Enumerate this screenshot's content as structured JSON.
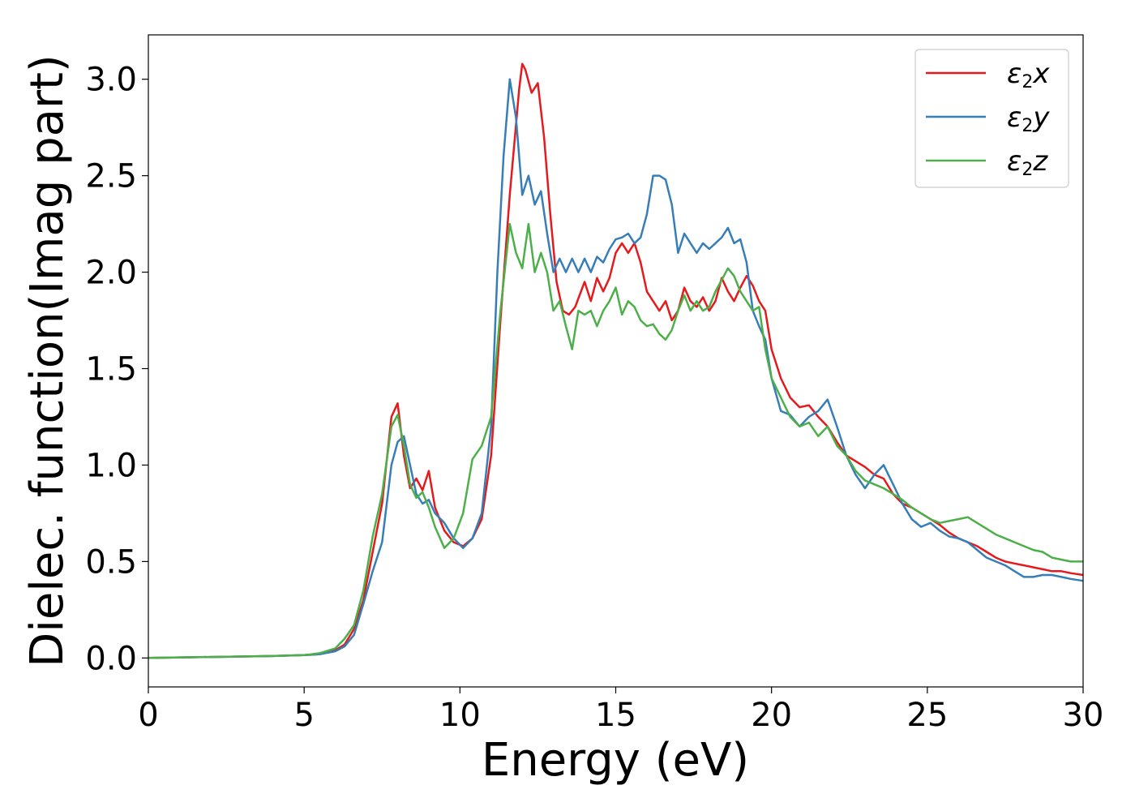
{
  "chart_data": {
    "type": "line",
    "xlabel": "Energy (eV)",
    "ylabel": "Dielec. function(Imag part)",
    "xlim": [
      0,
      30
    ],
    "ylim": [
      -0.15,
      3.23
    ],
    "xticks": [
      0,
      5,
      10,
      15,
      20,
      25,
      30
    ],
    "xtick_labels": [
      "0",
      "5",
      "10",
      "15",
      "20",
      "25",
      "30"
    ],
    "yticks": [
      0.0,
      0.5,
      1.0,
      1.5,
      2.0,
      2.5,
      3.0
    ],
    "ytick_labels": [
      "0.0",
      "0.5",
      "1.0",
      "1.5",
      "2.0",
      "2.5",
      "3.0"
    ],
    "grid": false,
    "legend_position": "top-right",
    "series": [
      {
        "name": "ε2x",
        "name_base": "ε",
        "name_sub": "2",
        "name_var": "x",
        "color": "#e41a1c",
        "x": [
          0,
          2,
          4,
          5,
          5.5,
          6,
          6.3,
          6.6,
          6.9,
          7.2,
          7.5,
          7.8,
          8.0,
          8.2,
          8.4,
          8.6,
          8.8,
          9.0,
          9.2,
          9.5,
          9.8,
          10.1,
          10.4,
          10.7,
          11.0,
          11.3,
          11.6,
          11.9,
          12.0,
          12.1,
          12.3,
          12.5,
          12.7,
          12.9,
          13.1,
          13.3,
          13.5,
          13.7,
          14.0,
          14.2,
          14.4,
          14.6,
          14.8,
          15.0,
          15.2,
          15.4,
          15.6,
          15.8,
          16.0,
          16.2,
          16.4,
          16.6,
          16.8,
          17.0,
          17.2,
          17.4,
          17.6,
          17.8,
          18.0,
          18.2,
          18.4,
          18.6,
          18.8,
          19.0,
          19.2,
          19.4,
          19.6,
          19.8,
          20.0,
          20.3,
          20.6,
          20.9,
          21.2,
          21.5,
          21.8,
          22.1,
          22.4,
          22.7,
          23.0,
          23.3,
          23.6,
          23.9,
          24.2,
          24.5,
          24.8,
          25.1,
          25.4,
          25.7,
          26.0,
          26.3,
          26.6,
          26.9,
          27.2,
          27.5,
          27.8,
          28.1,
          28.4,
          28.7,
          29.0,
          29.3,
          29.6,
          30.0
        ],
        "y": [
          0.0,
          0.005,
          0.01,
          0.015,
          0.02,
          0.04,
          0.07,
          0.15,
          0.3,
          0.55,
          0.8,
          1.25,
          1.32,
          1.05,
          0.88,
          0.93,
          0.87,
          0.97,
          0.78,
          0.66,
          0.6,
          0.58,
          0.62,
          0.72,
          1.05,
          1.75,
          2.4,
          2.95,
          3.08,
          3.05,
          2.93,
          2.98,
          2.7,
          2.3,
          1.95,
          1.8,
          1.78,
          1.82,
          1.95,
          1.85,
          1.97,
          1.9,
          1.97,
          2.1,
          2.15,
          2.1,
          2.15,
          2.05,
          1.9,
          1.85,
          1.8,
          1.85,
          1.75,
          1.8,
          1.92,
          1.85,
          1.82,
          1.87,
          1.8,
          1.85,
          1.97,
          1.9,
          1.85,
          1.92,
          1.98,
          1.93,
          1.85,
          1.8,
          1.6,
          1.45,
          1.35,
          1.3,
          1.31,
          1.25,
          1.2,
          1.12,
          1.05,
          1.02,
          0.99,
          0.95,
          0.93,
          0.85,
          0.8,
          0.78,
          0.75,
          0.72,
          0.69,
          0.65,
          0.62,
          0.6,
          0.58,
          0.55,
          0.52,
          0.5,
          0.49,
          0.48,
          0.47,
          0.46,
          0.45,
          0.45,
          0.44,
          0.43
        ]
      },
      {
        "name": "ε2y",
        "name_base": "ε",
        "name_sub": "2",
        "name_var": "y",
        "color": "#377eb8",
        "x": [
          0,
          2,
          4,
          5,
          5.5,
          6,
          6.3,
          6.6,
          6.9,
          7.2,
          7.5,
          7.8,
          8.0,
          8.2,
          8.4,
          8.6,
          8.8,
          9.0,
          9.2,
          9.5,
          9.8,
          10.1,
          10.4,
          10.7,
          11.0,
          11.2,
          11.4,
          11.6,
          11.8,
          12.0,
          12.2,
          12.4,
          12.6,
          12.8,
          13.0,
          13.2,
          13.4,
          13.6,
          13.8,
          14.0,
          14.2,
          14.4,
          14.6,
          14.8,
          15.0,
          15.2,
          15.4,
          15.6,
          15.8,
          16.0,
          16.2,
          16.4,
          16.6,
          16.8,
          17.0,
          17.2,
          17.4,
          17.6,
          17.8,
          18.0,
          18.2,
          18.4,
          18.6,
          18.8,
          19.0,
          19.2,
          19.4,
          19.6,
          19.8,
          20.0,
          20.3,
          20.6,
          20.9,
          21.2,
          21.5,
          21.8,
          22.1,
          22.4,
          22.7,
          23.0,
          23.3,
          23.6,
          23.9,
          24.2,
          24.5,
          24.8,
          25.1,
          25.4,
          25.7,
          26.0,
          26.3,
          26.6,
          26.9,
          27.2,
          27.5,
          27.8,
          28.1,
          28.4,
          28.7,
          29.0,
          29.3,
          29.6,
          30.0
        ],
        "y": [
          0.0,
          0.005,
          0.01,
          0.015,
          0.02,
          0.035,
          0.06,
          0.12,
          0.28,
          0.45,
          0.6,
          1.0,
          1.12,
          1.15,
          1.0,
          0.85,
          0.8,
          0.82,
          0.75,
          0.7,
          0.62,
          0.57,
          0.62,
          0.75,
          1.2,
          2.0,
          2.6,
          3.0,
          2.8,
          2.4,
          2.5,
          2.35,
          2.42,
          2.2,
          2.0,
          2.07,
          2.0,
          2.07,
          2.0,
          2.07,
          2.0,
          2.08,
          2.05,
          2.12,
          2.17,
          2.18,
          2.2,
          2.15,
          2.18,
          2.3,
          2.5,
          2.5,
          2.48,
          2.35,
          2.1,
          2.2,
          2.15,
          2.1,
          2.15,
          2.12,
          2.15,
          2.18,
          2.23,
          2.15,
          2.17,
          2.05,
          1.8,
          1.72,
          1.65,
          1.45,
          1.28,
          1.26,
          1.2,
          1.25,
          1.28,
          1.34,
          1.2,
          1.05,
          0.95,
          0.88,
          0.95,
          1.0,
          0.9,
          0.8,
          0.72,
          0.68,
          0.7,
          0.66,
          0.63,
          0.62,
          0.6,
          0.56,
          0.52,
          0.5,
          0.48,
          0.45,
          0.42,
          0.42,
          0.43,
          0.43,
          0.42,
          0.41,
          0.4
        ]
      },
      {
        "name": "ε2z",
        "name_base": "ε",
        "name_sub": "2",
        "name_var": "z",
        "color": "#4daf4a",
        "x": [
          0,
          2,
          4,
          5,
          5.5,
          6,
          6.3,
          6.6,
          6.9,
          7.2,
          7.5,
          7.8,
          8.0,
          8.2,
          8.4,
          8.6,
          8.8,
          9.0,
          9.2,
          9.5,
          9.8,
          10.1,
          10.4,
          10.7,
          11.0,
          11.3,
          11.6,
          11.8,
          12.0,
          12.2,
          12.4,
          12.6,
          12.8,
          13.0,
          13.2,
          13.4,
          13.6,
          13.8,
          14.0,
          14.2,
          14.4,
          14.6,
          14.8,
          15.0,
          15.2,
          15.4,
          15.6,
          15.8,
          16.0,
          16.2,
          16.4,
          16.6,
          16.8,
          17.0,
          17.2,
          17.4,
          17.6,
          17.8,
          18.0,
          18.2,
          18.4,
          18.6,
          18.8,
          19.0,
          19.2,
          19.4,
          19.6,
          19.8,
          20.0,
          20.3,
          20.6,
          20.9,
          21.2,
          21.5,
          21.8,
          22.1,
          22.4,
          22.7,
          23.0,
          23.3,
          23.6,
          23.9,
          24.2,
          24.5,
          24.8,
          25.1,
          25.4,
          25.7,
          26.0,
          26.3,
          26.6,
          26.9,
          27.2,
          27.5,
          27.8,
          28.1,
          28.4,
          28.7,
          29.0,
          29.3,
          29.6,
          30.0
        ],
        "y": [
          0.0,
          0.005,
          0.01,
          0.015,
          0.025,
          0.05,
          0.1,
          0.17,
          0.35,
          0.63,
          0.85,
          1.2,
          1.26,
          1.1,
          0.9,
          0.83,
          0.86,
          0.78,
          0.68,
          0.57,
          0.62,
          0.75,
          1.03,
          1.1,
          1.25,
          1.8,
          2.25,
          2.1,
          2.02,
          2.25,
          2.0,
          2.1,
          2.0,
          1.8,
          1.85,
          1.72,
          1.6,
          1.8,
          1.78,
          1.8,
          1.72,
          1.8,
          1.85,
          1.92,
          1.78,
          1.85,
          1.82,
          1.75,
          1.72,
          1.73,
          1.68,
          1.65,
          1.7,
          1.8,
          1.88,
          1.8,
          1.85,
          1.8,
          1.82,
          1.9,
          1.96,
          2.02,
          1.98,
          1.9,
          1.85,
          1.8,
          1.82,
          1.6,
          1.45,
          1.35,
          1.25,
          1.2,
          1.22,
          1.15,
          1.2,
          1.1,
          1.05,
          0.97,
          0.92,
          0.9,
          0.88,
          0.85,
          0.82,
          0.78,
          0.75,
          0.72,
          0.7,
          0.71,
          0.72,
          0.73,
          0.7,
          0.67,
          0.64,
          0.62,
          0.6,
          0.58,
          0.56,
          0.55,
          0.52,
          0.51,
          0.5,
          0.5
        ]
      }
    ]
  }
}
